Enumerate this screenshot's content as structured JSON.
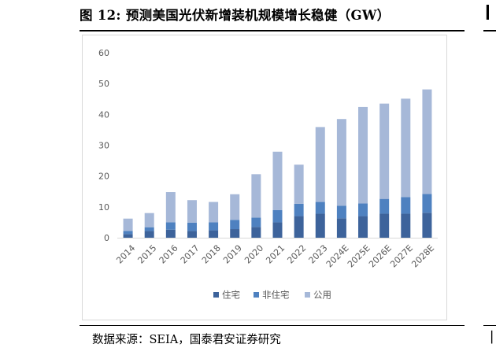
{
  "figure": {
    "title": "图 12: 预测美国光伏新增装机规模增长稳健（GW）",
    "source": "数据来源：SEIA，国泰君安证券研究"
  },
  "colors": {
    "residential": "#3d639b",
    "non_residential": "#4e81c0",
    "utility": "#a6b8d8",
    "axis": "#d9d9d9",
    "tick_text": "#595959"
  },
  "chart_data": {
    "type": "bar",
    "stacked": true,
    "categories": [
      "2014",
      "2015",
      "2016",
      "2017",
      "2018",
      "2019",
      "2020",
      "2021",
      "2022",
      "2023",
      "2024E",
      "2025E",
      "2026E",
      "2027E",
      "2028E"
    ],
    "series": [
      {
        "name": "住宅",
        "values": [
          1.2,
          2.2,
          2.6,
          2.2,
          2.4,
          2.8,
          3.5,
          5.0,
          7.0,
          7.8,
          6.3,
          7.0,
          7.8,
          7.8,
          8.1
        ]
      },
      {
        "name": "非住宅",
        "values": [
          1.0,
          1.2,
          2.4,
          2.7,
          2.6,
          3.0,
          3.0,
          4.0,
          4.0,
          3.8,
          4.1,
          4.1,
          4.8,
          5.4,
          6.1
        ]
      },
      {
        "name": "公用",
        "values": [
          4.0,
          4.6,
          9.8,
          7.3,
          6.6,
          8.3,
          14.1,
          18.9,
          12.7,
          24.3,
          28.1,
          31.3,
          30.9,
          31.9,
          33.9
        ]
      }
    ],
    "yticks": [
      "0",
      "10",
      "20",
      "30",
      "40",
      "50",
      "60"
    ],
    "ylim": [
      0,
      60
    ],
    "grid": false,
    "legend_position": "bottom"
  }
}
